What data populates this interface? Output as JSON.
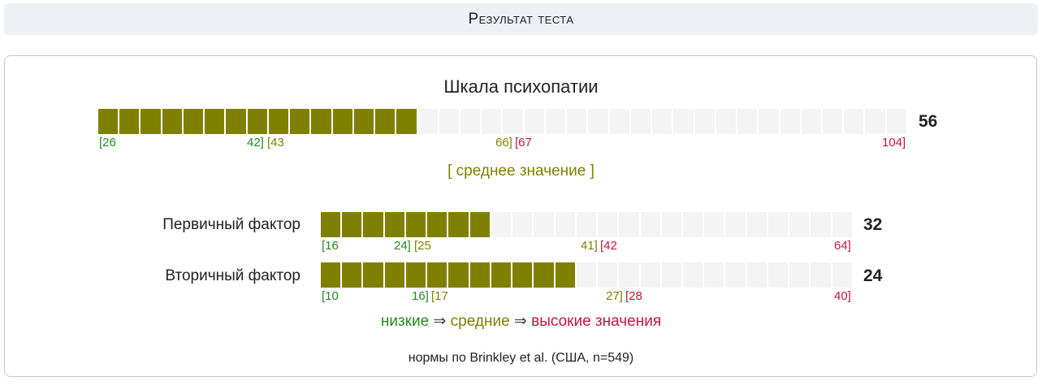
{
  "header": {
    "title": "Результат теста"
  },
  "main": {
    "title": "Шкала психопатии",
    "score": "56",
    "min": 26,
    "max": 104,
    "value": 56,
    "ticks": {
      "low_start": "[26",
      "low_end": "42]",
      "mid_start": "[43",
      "mid_end": "66]",
      "high_start": "[67",
      "high_end": "104]"
    },
    "verdict": "[ среднее значение ]"
  },
  "factors": [
    {
      "label": "Первичный фактор",
      "score": "32",
      "min": 16,
      "max": 64,
      "value": 32,
      "ticks": {
        "low_start": "[16",
        "low_end": "24]",
        "mid_start": "[25",
        "mid_end": "41]",
        "high_start": "[42",
        "high_end": "64]"
      }
    },
    {
      "label": "Вторичный фактор",
      "score": "24",
      "min": 10,
      "max": 40,
      "value": 24,
      "ticks": {
        "low_start": "[10",
        "low_end": "16]",
        "mid_start": "[17",
        "mid_end": "27]",
        "high_start": "[28",
        "high_end": "40]"
      }
    }
  ],
  "legend": {
    "low": "низкие",
    "mid": "средние",
    "high": "высокие значения",
    "arrow": "⇒"
  },
  "norms": "нормы по Brinkley et al. (США, n=549)",
  "colors": {
    "filled": "#808000",
    "empty": "#f4f4f4",
    "low": "#228b22",
    "mid": "#808000",
    "high": "#c8143c"
  }
}
